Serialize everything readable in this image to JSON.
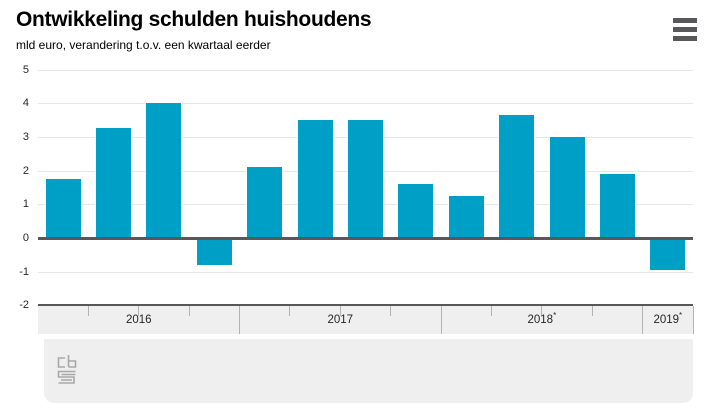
{
  "header": {
    "title": "Ontwikkeling schulden huishoudens",
    "subtitle": "mld euro, verandering t.o.v. een kwartaal eerder"
  },
  "menu": {
    "icon": "hamburger-menu-icon"
  },
  "colors": {
    "bar": "#00a0c6",
    "grid_line": "#e6e6e6",
    "zero_line": "#58585a",
    "band_background": "#efefef",
    "band_tick": "#b3b3b3",
    "footer_background": "#efefef",
    "logo": "#a8a8a8",
    "menu_icon": "#58585a",
    "text": "#262626"
  },
  "chart_data": {
    "type": "bar",
    "title": "Ontwikkeling schulden huishoudens",
    "subtitle": "mld euro, verandering t.o.v. een kwartaal eerder",
    "categories": [
      "2016-K1",
      "2016-K2",
      "2016-K3",
      "2016-K4",
      "2017-K1",
      "2017-K2",
      "2017-K3",
      "2017-K4",
      "2018-K1",
      "2018-K2",
      "2018-K3",
      "2018-K4",
      "2019-K1"
    ],
    "values": [
      1.8,
      3.3,
      4.05,
      -0.8,
      2.15,
      3.55,
      3.55,
      1.65,
      1.3,
      3.7,
      3.05,
      1.95,
      -0.95
    ],
    "ylabel": "mld euro",
    "ylim": [
      -2,
      5
    ],
    "yticks": [
      5,
      4,
      3,
      2,
      1,
      0,
      -1,
      -2
    ],
    "grid": true,
    "legend": "none",
    "x_groups": [
      {
        "label": "2016",
        "marker": "",
        "span": 4
      },
      {
        "label": "2017",
        "marker": "",
        "span": 4
      },
      {
        "label": "2018",
        "marker": "*",
        "span": 4
      },
      {
        "label": "2019",
        "marker": "*",
        "span": 1
      }
    ]
  },
  "footer": {
    "logo": "cbs-logo"
  }
}
